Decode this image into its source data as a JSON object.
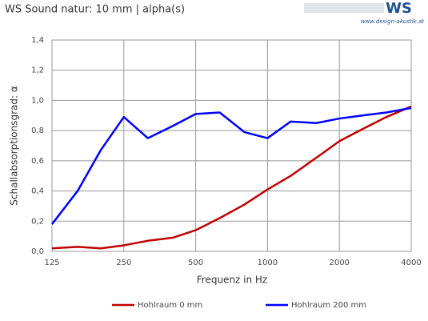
{
  "logo": {
    "brand": "WS",
    "url": "www.design-akustik.at"
  },
  "chart_data": {
    "type": "line",
    "title": "WS Sound natur: 10 mm | alpha(s)",
    "x_label": "Frequenz in Hz",
    "y_label": "Schallabsorptionsgrad: α",
    "x": [
      125,
      160,
      200,
      250,
      315,
      400,
      500,
      630,
      800,
      1000,
      1250,
      1600,
      2000,
      2500,
      3150,
      4000
    ],
    "series": [
      {
        "name": "Hohlraum 0 mm",
        "color": "#c00000",
        "values": [
          0.02,
          0.03,
          0.02,
          0.04,
          0.07,
          0.09,
          0.14,
          0.22,
          0.31,
          0.41,
          0.5,
          0.62,
          0.73,
          0.81,
          0.89,
          0.96
        ]
      },
      {
        "name": "Hohlraum 200 mm",
        "color": "#0000ff",
        "values": [
          0.18,
          0.4,
          0.67,
          0.89,
          0.75,
          0.83,
          0.91,
          0.92,
          0.79,
          0.75,
          0.86,
          0.85,
          0.88,
          0.9,
          0.92,
          0.95
        ]
      }
    ],
    "xscale": "log",
    "xlim": [
      125,
      4000
    ],
    "xticks": [
      125,
      250,
      500,
      1000,
      2000,
      4000
    ],
    "ylim": [
      0,
      1.4
    ],
    "yticks": [
      {
        "value": 0,
        "label": "0,0"
      },
      {
        "value": 0.2,
        "label": "0,2"
      },
      {
        "value": 0.4,
        "label": "0,4"
      },
      {
        "value": 0.6,
        "label": "0,6"
      },
      {
        "value": 0.8,
        "label": "0,8"
      },
      {
        "value": 1.0,
        "label": "1,0"
      },
      {
        "value": 1.2,
        "label": "1,2"
      },
      {
        "value": 1.4,
        "label": "1,4"
      }
    ],
    "grid": true,
    "legend": "bottom"
  }
}
